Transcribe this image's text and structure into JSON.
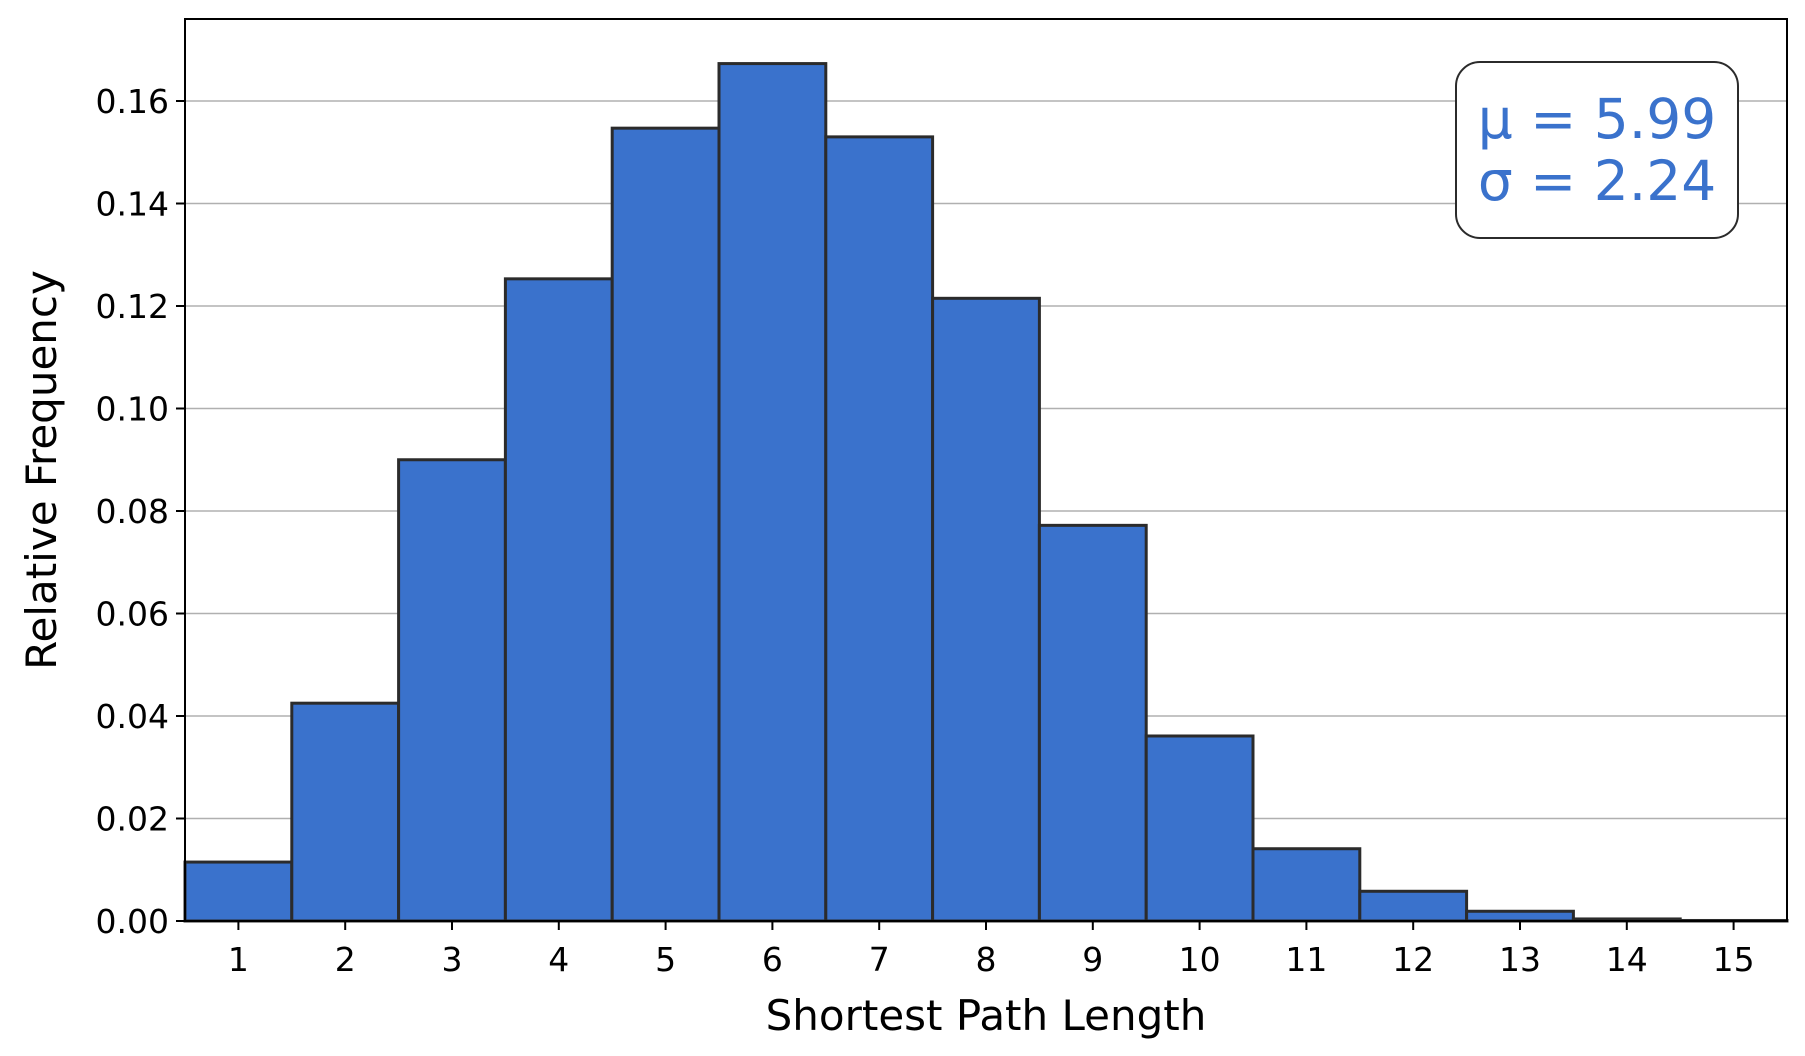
{
  "chart_data": {
    "type": "bar",
    "xlabel": "Shortest Path Length",
    "ylabel": "Relative Frequency",
    "categories": [
      "1",
      "2",
      "3",
      "4",
      "5",
      "6",
      "7",
      "8",
      "9",
      "10",
      "11",
      "12",
      "13",
      "14",
      "15"
    ],
    "values": [
      0.0115,
      0.0425,
      0.09,
      0.1253,
      0.1547,
      0.1673,
      0.153,
      0.1215,
      0.0772,
      0.0361,
      0.0141,
      0.0058,
      0.0019,
      0.0004,
      0.0001
    ],
    "xlim": [
      0.5,
      15.5
    ],
    "ylim": [
      0,
      0.176
    ],
    "yticks": [
      "0.00",
      "0.02",
      "0.04",
      "0.06",
      "0.08",
      "0.10",
      "0.12",
      "0.14",
      "0.16"
    ],
    "grid": "y",
    "annotation": {
      "mu_text": "μ = 5.99",
      "sigma_text": "σ = 2.24",
      "position": "top-right"
    },
    "colors": {
      "bar_fill": "#3a72cc",
      "bar_edge": "#2b2b2b",
      "annotation_text": "#3a72cc",
      "grid": "#b0b0b0"
    }
  }
}
